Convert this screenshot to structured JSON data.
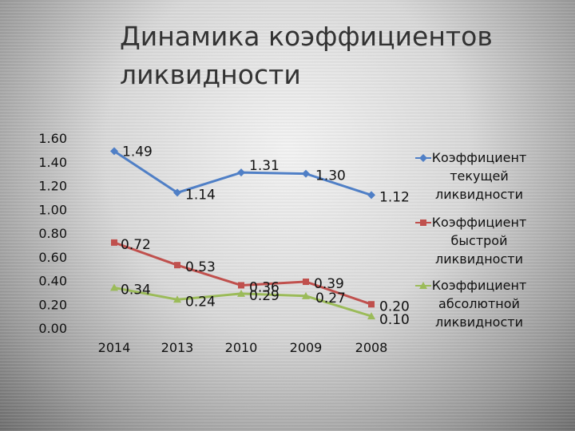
{
  "slide": {
    "title_line1": "Динамика коэффициентов",
    "title_line2": "ликвидности"
  },
  "chart_data": {
    "type": "line",
    "title": "Динамика коэффициентов ликвидности",
    "categories": [
      "2014",
      "2013",
      "2010",
      "2009",
      "2008"
    ],
    "ylim": [
      0,
      1.6
    ],
    "yticks": [
      "0.00",
      "0.20",
      "0.40",
      "0.60",
      "0.80",
      "1.00",
      "1.20",
      "1.40",
      "1.60"
    ],
    "grid": false,
    "legend_position": "right",
    "series": [
      {
        "name": "Коэффициент текущей ликвидности",
        "legend_lines": [
          "Коэффициент",
          "текущей",
          "ликвидности"
        ],
        "values": [
          1.49,
          1.14,
          1.31,
          1.3,
          1.12
        ],
        "labels": [
          "1.49",
          "1.14",
          "1.31",
          "1.30",
          "1.12"
        ],
        "color": "#4f7fc6",
        "marker": "diamond"
      },
      {
        "name": "Коэффициент быстрой ликвидности",
        "legend_lines": [
          "Коэффициент",
          "быстрой",
          "ликвидности"
        ],
        "values": [
          0.72,
          0.53,
          0.36,
          0.39,
          0.2
        ],
        "labels": [
          "0.72",
          "0.53",
          "0.36",
          "0.39",
          "0.20"
        ],
        "color": "#c0504d",
        "marker": "square"
      },
      {
        "name": "Коэффициент абсолютной ликвидности",
        "legend_lines": [
          "Коэффициент",
          "абсолютной",
          "ликвидности"
        ],
        "values": [
          0.34,
          0.24,
          0.29,
          0.27,
          0.1
        ],
        "labels": [
          "0.34",
          "0.24",
          "0.29",
          "0.27",
          "0.10"
        ],
        "color": "#9bbb59",
        "marker": "triangle"
      }
    ]
  }
}
